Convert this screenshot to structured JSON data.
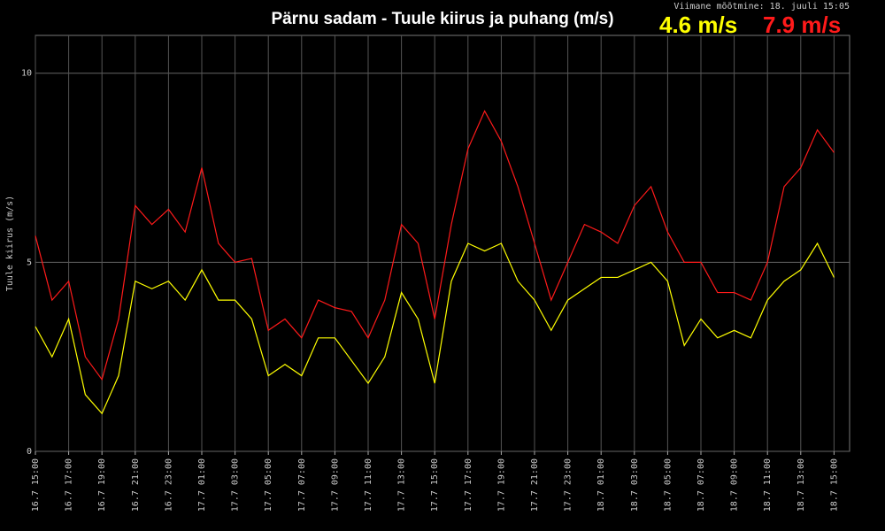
{
  "chart_data": {
    "type": "line",
    "title": "Pärnu sadam - Tuule kiirus ja puhang (m/s)",
    "subtitle": "Viimane mõõtmine: 18. juuli 15:05",
    "current_labels": [
      "4.6 m/s",
      "7.9 m/s"
    ],
    "y_label": "Tuule kiirus (m/s)",
    "categories": [
      "16.7 15:00",
      null,
      "16.7 17:00",
      null,
      "16.7 19:00",
      null,
      "16.7 21:00",
      null,
      "16.7 23:00",
      null,
      "17.7 01:00",
      null,
      "17.7 03:00",
      null,
      "17.7 05:00",
      null,
      "17.7 07:00",
      null,
      "17.7 09:00",
      null,
      "17.7 11:00",
      null,
      "17.7 13:00",
      null,
      "17.7 15:00",
      null,
      "17.7 17:00",
      null,
      "17.7 19:00",
      null,
      "17.7 21:00",
      null,
      "17.7 23:00",
      null,
      "18.7 01:00",
      null,
      "18.7 03:00",
      null,
      "18.7 05:00",
      null,
      "18.7 07:00",
      null,
      "18.7 09:00",
      null,
      "18.7 11:00",
      null,
      "18.7 13:00",
      null,
      "18.7 15:00"
    ],
    "series": [
      {
        "color": "#ff1a1a",
        "values": [
          5.7,
          4.0,
          4.5,
          2.5,
          1.9,
          3.5,
          6.5,
          6.0,
          6.4,
          5.8,
          7.5,
          5.5,
          5.0,
          5.1,
          3.2,
          3.5,
          3.0,
          4.0,
          3.8,
          3.7,
          3.0,
          4.0,
          6.0,
          5.5,
          3.5,
          6.0,
          8.0,
          9.0,
          8.2,
          7.0,
          5.5,
          4.0,
          5.0,
          6.0,
          5.8,
          5.5,
          6.5,
          7.0,
          5.8,
          5.0,
          5.0,
          4.2,
          4.2,
          4.0,
          5.0,
          7.0,
          7.5,
          8.5,
          7.9
        ]
      },
      {
        "color": "#ffff00",
        "values": [
          3.3,
          2.5,
          3.5,
          1.5,
          1.0,
          2.0,
          4.5,
          4.3,
          4.5,
          4.0,
          4.8,
          4.0,
          4.0,
          3.5,
          2.0,
          2.3,
          2.0,
          3.0,
          3.0,
          2.4,
          1.8,
          2.5,
          4.2,
          3.5,
          1.8,
          4.5,
          5.5,
          5.3,
          5.5,
          4.5,
          4.0,
          3.2,
          4.0,
          4.3,
          4.6,
          4.6,
          4.8,
          5.0,
          4.5,
          2.8,
          3.5,
          3.0,
          3.2,
          3.0,
          4.0,
          4.5,
          4.8,
          5.5,
          4.6
        ]
      }
    ],
    "ylim": [
      0,
      11
    ],
    "yticks": [
      0,
      5,
      10
    ],
    "grid": true
  }
}
